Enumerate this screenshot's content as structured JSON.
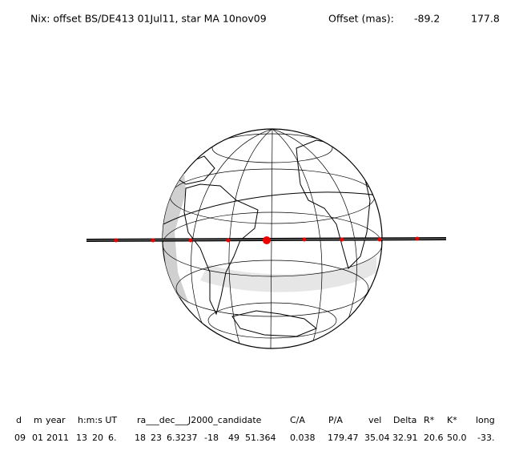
{
  "header": {
    "title": "Nix: offset BS/DE413 01Jul11, star MA 10nov09",
    "offset_label": "Offset (mas):",
    "offset_values": [
      "-89.2",
      "177.8"
    ]
  },
  "table": {
    "columns": [
      "d",
      "m",
      "year",
      "h:m:s UT",
      "ra___dec___J2000_candidate",
      "C/A",
      "P/A",
      "vel",
      "Delta",
      "R*",
      "K*",
      "long"
    ],
    "rows": [
      [
        "09",
        "01",
        "2011",
        "13",
        "20",
        "6.",
        "18",
        "23",
        "6.3237",
        "-18",
        "49",
        "51.364",
        "0.038",
        "179.47",
        "35.04",
        "32.91",
        "20.6",
        "50.0",
        "-33."
      ]
    ]
  }
}
